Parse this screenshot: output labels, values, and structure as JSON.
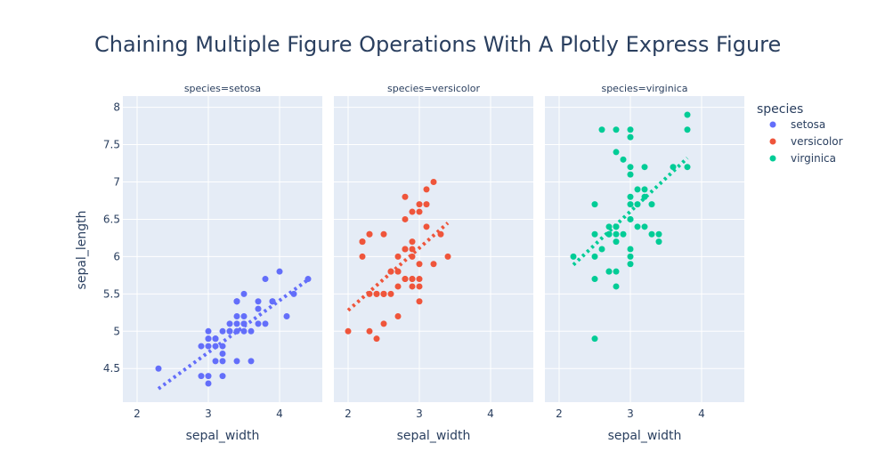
{
  "chart_data": {
    "type": "scatter",
    "title": "Chaining Multiple Figure Operations With A Plotly Express Figure",
    "xlabel": "sepal_width",
    "ylabel": "sepal_length",
    "x_ticks": [
      "2",
      "3",
      "4"
    ],
    "y_ticks": [
      "4.5",
      "5",
      "5.5",
      "6",
      "6.5",
      "7",
      "7.5",
      "8"
    ],
    "xlim": [
      1.8,
      4.6
    ],
    "ylim": [
      4.05,
      8.15
    ],
    "legend_title": "species",
    "legend_position": "right",
    "grid": true,
    "plot_background": "#E5ECF6",
    "panels": [
      {
        "title": "species=setosa",
        "series": {
          "name": "setosa",
          "color": "#636EFA",
          "x": [
            2.3,
            2.9,
            3.0,
            3.0,
            3.0,
            3.0,
            3.0,
            3.1,
            3.1,
            3.1,
            3.1,
            3.1,
            3.2,
            3.2,
            3.2,
            3.2,
            3.3,
            3.3,
            3.3,
            3.4,
            3.4,
            3.4,
            3.4,
            3.4,
            3.4,
            3.4,
            3.5,
            3.5,
            3.5,
            3.5,
            3.5,
            3.6,
            3.6,
            3.7,
            3.7,
            3.7,
            3.8,
            3.8,
            3.9,
            3.9,
            4.0,
            4.1,
            4.2,
            4.4,
            2.9,
            3.0,
            3.2
          ],
          "y": [
            4.5,
            4.4,
            4.3,
            4.4,
            4.8,
            4.9,
            5.0,
            4.6,
            4.8,
            4.9,
            4.9,
            4.9,
            4.4,
            4.6,
            5.0,
            4.7,
            5.0,
            5.1,
            5.0,
            4.6,
            5.0,
            5.1,
            5.2,
            5.4,
            5.4,
            5.4,
            5.0,
            5.1,
            5.2,
            5.5,
            5.1,
            4.6,
            5.0,
            5.1,
            5.3,
            5.4,
            5.1,
            5.7,
            5.4,
            5.4,
            5.8,
            5.2,
            5.5,
            5.7,
            4.8,
            4.9,
            4.8
          ],
          "trend": [
            [
              2.3,
              4.23
            ],
            [
              4.4,
              5.69
            ]
          ]
        }
      },
      {
        "title": "species=versicolor",
        "series": {
          "name": "versicolor",
          "color": "#EF553B",
          "x": [
            2.0,
            2.2,
            2.2,
            2.2,
            2.3,
            2.3,
            2.3,
            2.3,
            2.4,
            2.4,
            2.4,
            2.5,
            2.5,
            2.5,
            2.5,
            2.6,
            2.6,
            2.6,
            2.7,
            2.7,
            2.7,
            2.7,
            2.7,
            2.8,
            2.8,
            2.8,
            2.8,
            2.8,
            2.8,
            2.9,
            2.9,
            2.9,
            2.9,
            2.9,
            2.9,
            2.9,
            3.0,
            3.0,
            3.0,
            3.0,
            3.0,
            3.0,
            3.1,
            3.1,
            3.1,
            3.2,
            3.2,
            3.3,
            3.4,
            2.5
          ],
          "y": [
            5.0,
            6.0,
            6.2,
            6.2,
            5.0,
            5.5,
            6.3,
            6.3,
            4.9,
            5.5,
            5.5,
            5.1,
            5.5,
            5.5,
            6.3,
            5.5,
            5.8,
            5.8,
            5.6,
            5.8,
            6.0,
            5.2,
            5.8,
            5.7,
            6.1,
            6.1,
            6.5,
            6.8,
            5.7,
            5.6,
            5.7,
            6.0,
            6.1,
            6.2,
            6.6,
            5.7,
            5.4,
            5.6,
            5.7,
            6.6,
            6.7,
            5.9,
            6.4,
            6.7,
            6.9,
            5.9,
            7.0,
            6.3,
            6.0,
            5.5
          ],
          "trend": [
            [
              2.0,
              5.28
            ],
            [
              3.4,
              6.45
            ]
          ]
        }
      },
      {
        "title": "species=virginica",
        "series": {
          "name": "virginica",
          "color": "#00CC96",
          "x": [
            2.2,
            2.5,
            2.5,
            2.5,
            2.5,
            2.6,
            2.6,
            2.7,
            2.7,
            2.7,
            2.7,
            2.8,
            2.8,
            2.8,
            2.8,
            2.8,
            2.8,
            2.8,
            2.8,
            2.9,
            2.9,
            3.0,
            3.0,
            3.0,
            3.0,
            3.0,
            3.0,
            3.0,
            3.0,
            3.0,
            3.0,
            3.0,
            3.1,
            3.1,
            3.1,
            3.2,
            3.2,
            3.2,
            3.2,
            3.3,
            3.3,
            3.4,
            3.4,
            3.6,
            3.8,
            3.8,
            3.8,
            2.5,
            2.7
          ],
          "y": [
            6.0,
            4.9,
            5.7,
            6.3,
            6.7,
            6.1,
            7.7,
            5.8,
            6.3,
            6.4,
            5.8,
            5.6,
            6.2,
            6.3,
            6.4,
            7.4,
            7.7,
            5.8,
            6.4,
            6.3,
            7.3,
            6.1,
            6.5,
            6.7,
            7.2,
            7.6,
            7.7,
            5.9,
            6.0,
            6.8,
            6.5,
            7.1,
            6.7,
            6.9,
            6.4,
            6.8,
            6.9,
            7.2,
            6.4,
            6.7,
            6.3,
            6.2,
            6.3,
            7.2,
            7.7,
            7.9,
            7.2,
            6.0,
            6.3
          ],
          "trend": [
            [
              2.2,
              5.89
            ],
            [
              3.8,
              7.32
            ]
          ]
        }
      }
    ]
  }
}
